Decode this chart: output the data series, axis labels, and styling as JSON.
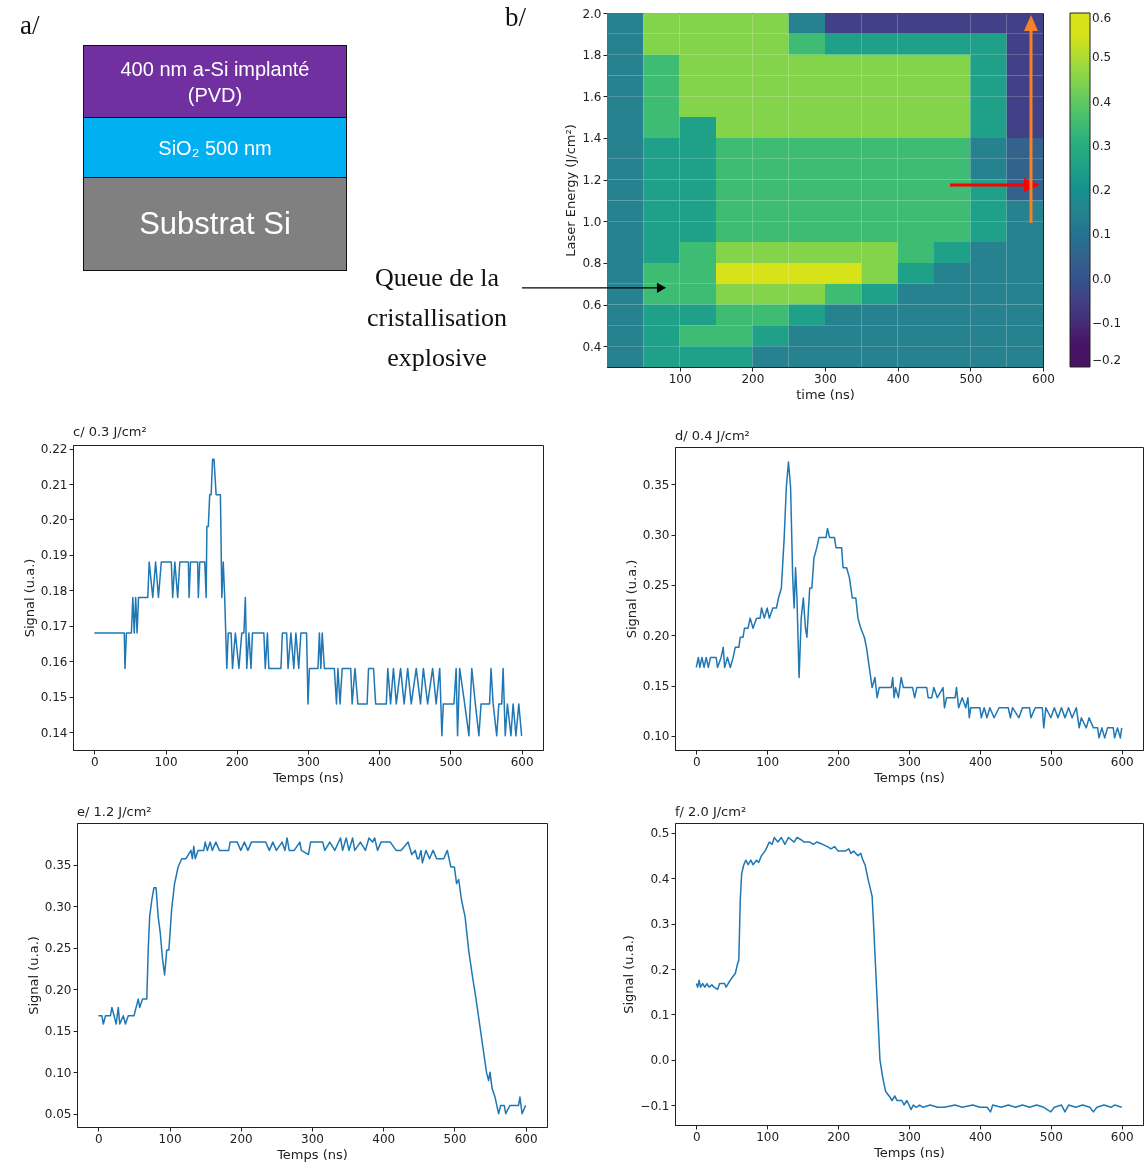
{
  "chart_data": [
    {
      "type": "other",
      "title": "a/",
      "categories": [
        "400 nm a-Si implanté (PVD)",
        "SiO₂ 500 nm",
        "Substrat Si"
      ],
      "colors": [
        "#7030a0",
        "#00b0f0",
        "#808080"
      ]
    },
    {
      "type": "heatmap",
      "title": "b/",
      "xlabel": "time (ns)",
      "ylabel": "Laser Energy (J/cm²)",
      "clim": [
        -0.2,
        0.6
      ],
      "cticks": [
        {
          "value": -0.2,
          "label": "−0.2"
        },
        {
          "value": -0.1,
          "label": "−0.1"
        },
        {
          "value": 0,
          "label": "0.0"
        },
        0.1,
        0.2,
        0.3,
        0.4,
        0.5,
        0.6
      ],
      "colors": [
        "#471365",
        "#424086",
        "#33638d",
        "#26828e",
        "#1fa088",
        "#3fbc73",
        "#84d44b",
        "#d8e219"
      ],
      "xlim": [
        0,
        600
      ],
      "xticks": [
        100,
        200,
        300,
        400,
        500,
        600
      ],
      "ylim": [
        0.3,
        2.0
      ],
      "yticks": [
        0.4,
        0.6,
        0.8,
        {
          "value": 1,
          "label": "1.0"
        },
        1.2,
        1.4,
        1.6,
        1.8,
        {
          "value": 2,
          "label": "2.0"
        }
      ],
      "x": [
        25,
        75,
        125,
        175,
        225,
        275,
        325,
        375,
        425,
        475,
        525,
        575
      ],
      "y": [
        1.95,
        1.85,
        1.75,
        1.65,
        1.55,
        1.45,
        1.35,
        1.25,
        1.15,
        1.05,
        0.95,
        0.85,
        0.75,
        0.65,
        0.55,
        0.45,
        0.35
      ],
      "cells": [
        [
          0.15,
          0.45,
          0.45,
          0.45,
          0.45,
          0.15,
          -0.05,
          -0.05,
          -0.05,
          -0.05,
          -0.05,
          -0.05
        ],
        [
          0.15,
          0.45,
          0.45,
          0.45,
          0.45,
          0.35,
          0.25,
          0.25,
          0.25,
          0.25,
          0.25,
          -0.05
        ],
        [
          0.15,
          0.35,
          0.45,
          0.45,
          0.45,
          0.45,
          0.45,
          0.45,
          0.45,
          0.45,
          0.25,
          -0.05
        ],
        [
          0.15,
          0.35,
          0.45,
          0.45,
          0.45,
          0.45,
          0.45,
          0.45,
          0.45,
          0.45,
          0.25,
          -0.05
        ],
        [
          0.15,
          0.35,
          0.45,
          0.45,
          0.45,
          0.45,
          0.45,
          0.45,
          0.45,
          0.45,
          0.25,
          -0.05
        ],
        [
          0.15,
          0.35,
          0.25,
          0.45,
          0.45,
          0.45,
          0.45,
          0.45,
          0.45,
          0.45,
          0.25,
          -0.05
        ],
        [
          0.15,
          0.25,
          0.25,
          0.35,
          0.35,
          0.35,
          0.35,
          0.35,
          0.35,
          0.35,
          0.15,
          0.05
        ],
        [
          0.15,
          0.25,
          0.25,
          0.35,
          0.35,
          0.35,
          0.35,
          0.35,
          0.35,
          0.35,
          0.15,
          0.05
        ],
        [
          0.15,
          0.25,
          0.25,
          0.35,
          0.35,
          0.35,
          0.35,
          0.35,
          0.35,
          0.35,
          0.25,
          0.05
        ],
        [
          0.15,
          0.25,
          0.25,
          0.35,
          0.35,
          0.35,
          0.35,
          0.35,
          0.35,
          0.35,
          0.25,
          0.15
        ],
        [
          0.15,
          0.25,
          0.25,
          0.35,
          0.35,
          0.35,
          0.35,
          0.35,
          0.35,
          0.35,
          0.25,
          0.15
        ],
        [
          0.15,
          0.25,
          0.35,
          0.45,
          0.45,
          0.45,
          0.45,
          0.45,
          0.35,
          0.25,
          0.15,
          0.15
        ],
        [
          0.15,
          0.35,
          0.35,
          0.55,
          0.55,
          0.55,
          0.55,
          0.45,
          0.25,
          0.15,
          0.15,
          0.15
        ],
        [
          0.15,
          0.35,
          0.35,
          0.45,
          0.45,
          0.45,
          0.35,
          0.25,
          0.15,
          0.15,
          0.15,
          0.15
        ],
        [
          0.15,
          0.25,
          0.25,
          0.35,
          0.35,
          0.25,
          0.15,
          0.15,
          0.15,
          0.15,
          0.15,
          0.15
        ],
        [
          0.15,
          0.25,
          0.35,
          0.35,
          0.25,
          0.15,
          0.15,
          0.15,
          0.15,
          0.15,
          0.15,
          0.15
        ],
        [
          0.15,
          0.25,
          0.25,
          0.25,
          0.15,
          0.15,
          0.15,
          0.15,
          0.15,
          0.15,
          0.15,
          0.15
        ]
      ],
      "annotations": [
        {
          "text": "Queue de la cristallisation explosive",
          "x": 75,
          "y": 0.68
        }
      ]
    },
    {
      "type": "line",
      "title": "c/ 0.3 J/cm²",
      "xlabel": "Temps (ns)",
      "ylabel": "Signal (u.a.)",
      "color": "#1f77b4",
      "xlim": [
        -30,
        630
      ],
      "xticks": [
        0,
        100,
        200,
        300,
        400,
        500,
        600
      ],
      "ylim": [
        0.135,
        0.221
      ],
      "yticks": [
        0.14,
        0.15,
        0.16,
        0.17,
        0.18,
        0.19,
        {
          "value": 0.2,
          "label": "0.20"
        },
        0.21,
        0.22
      ],
      "x": [
        0,
        42,
        43,
        45,
        52,
        54,
        56,
        58,
        60,
        62,
        75,
        77,
        82,
        86,
        90,
        94,
        108,
        110,
        113,
        117,
        120,
        132,
        133,
        135,
        145,
        146,
        148,
        155,
        157,
        158,
        160,
        162,
        164,
        166,
        168,
        171,
        177,
        179,
        181,
        183,
        186,
        188,
        192,
        194,
        198,
        203,
        207,
        210,
        212,
        214,
        217,
        220,
        222,
        238,
        240,
        243,
        245,
        262,
        264,
        270,
        272,
        276,
        280,
        283,
        287,
        290,
        298,
        300,
        302,
        314,
        316,
        318,
        320,
        323,
        337,
        340,
        342,
        345,
        348,
        360,
        362,
        366,
        370,
        383,
        385,
        392,
        395,
        410,
        412,
        416,
        420,
        424,
        430,
        435,
        440,
        445,
        452,
        458,
        462,
        468,
        475,
        480,
        485,
        488,
        490,
        505,
        508,
        510,
        513,
        520,
        526,
        530,
        535,
        540,
        543,
        555,
        557,
        560,
        565,
        568,
        572,
        574,
        577,
        580,
        585,
        588,
        592,
        596,
        600
      ],
      "values": [
        0.168,
        0.168,
        0.158,
        0.168,
        0.168,
        0.178,
        0.168,
        0.178,
        0.168,
        0.178,
        0.178,
        0.188,
        0.178,
        0.188,
        0.178,
        0.188,
        0.188,
        0.178,
        0.188,
        0.178,
        0.188,
        0.188,
        0.178,
        0.188,
        0.188,
        0.178,
        0.188,
        0.188,
        0.178,
        0.198,
        0.198,
        0.207,
        0.207,
        0.217,
        0.217,
        0.207,
        0.207,
        0.178,
        0.188,
        0.178,
        0.158,
        0.168,
        0.168,
        0.158,
        0.168,
        0.158,
        0.168,
        0.168,
        0.178,
        0.158,
        0.168,
        0.158,
        0.168,
        0.168,
        0.158,
        0.168,
        0.158,
        0.158,
        0.168,
        0.168,
        0.158,
        0.168,
        0.158,
        0.168,
        0.158,
        0.168,
        0.168,
        0.148,
        0.158,
        0.158,
        0.168,
        0.158,
        0.168,
        0.158,
        0.158,
        0.148,
        0.158,
        0.148,
        0.158,
        0.158,
        0.148,
        0.158,
        0.148,
        0.148,
        0.158,
        0.158,
        0.148,
        0.148,
        0.158,
        0.148,
        0.158,
        0.148,
        0.158,
        0.148,
        0.158,
        0.148,
        0.158,
        0.148,
        0.158,
        0.148,
        0.158,
        0.148,
        0.158,
        0.139,
        0.148,
        0.148,
        0.158,
        0.139,
        0.158,
        0.148,
        0.139,
        0.158,
        0.148,
        0.139,
        0.148,
        0.148,
        0.158,
        0.148,
        0.139,
        0.148,
        0.148,
        0.158,
        0.139,
        0.148,
        0.139,
        0.148,
        0.139,
        0.148,
        0.139
      ]
    },
    {
      "type": "line",
      "title": "d/ 0.4 J/cm²",
      "xlabel": "Temps (ns)",
      "ylabel": "Signal (u.a.)",
      "color": "#1f77b4",
      "xlim": [
        -30,
        630
      ],
      "xticks": [
        0,
        100,
        200,
        300,
        400,
        500,
        600
      ],
      "ylim": [
        0.086,
        0.387
      ],
      "yticks": [
        {
          "value": 0.1,
          "label": "0.10"
        },
        0.15,
        {
          "value": 0.2,
          "label": "0.20"
        },
        0.25,
        {
          "value": 0.3,
          "label": "0.30"
        },
        0.35
      ],
      "x": [
        0,
        3,
        5,
        8,
        11,
        14,
        17,
        20,
        28,
        30,
        35,
        38,
        40,
        44,
        48,
        52,
        55,
        60,
        62,
        66,
        68,
        73,
        76,
        80,
        85,
        90,
        92,
        96,
        100,
        103,
        108,
        113,
        116,
        120,
        124,
        127,
        130,
        133,
        136,
        138,
        140,
        142,
        145,
        148,
        151,
        154,
        156,
        160,
        163,
        166,
        170,
        173,
        183,
        185,
        188,
        195,
        197,
        205,
        207,
        212,
        216,
        220,
        225,
        228,
        232,
        237,
        240,
        244,
        248,
        252,
        255,
        258,
        275,
        277,
        279,
        281,
        285,
        289,
        292,
        305,
        308,
        311,
        325,
        327,
        332,
        335,
        340,
        348,
        350,
        353,
        365,
        367,
        370,
        375,
        380,
        383,
        385,
        387,
        400,
        402,
        406,
        410,
        414,
        420,
        427,
        440,
        443,
        446,
        455,
        460,
        470,
        472,
        478,
        488,
        490,
        493,
        500,
        505,
        510,
        515,
        520,
        525,
        530,
        536,
        540,
        543,
        550,
        554,
        560,
        566,
        568,
        572,
        576,
        580,
        588,
        590,
        594,
        598,
        600
      ],
      "values": [
        0.168,
        0.178,
        0.168,
        0.178,
        0.168,
        0.178,
        0.168,
        0.178,
        0.178,
        0.168,
        0.178,
        0.188,
        0.168,
        0.178,
        0.168,
        0.178,
        0.188,
        0.188,
        0.198,
        0.198,
        0.207,
        0.207,
        0.217,
        0.207,
        0.217,
        0.217,
        0.227,
        0.217,
        0.227,
        0.217,
        0.227,
        0.227,
        0.237,
        0.247,
        0.297,
        0.347,
        0.372,
        0.347,
        0.257,
        0.227,
        0.267,
        0.237,
        0.158,
        0.217,
        0.237,
        0.207,
        0.198,
        0.247,
        0.247,
        0.277,
        0.287,
        0.297,
        0.297,
        0.306,
        0.297,
        0.297,
        0.287,
        0.287,
        0.267,
        0.267,
        0.257,
        0.237,
        0.237,
        0.217,
        0.207,
        0.198,
        0.188,
        0.168,
        0.148,
        0.158,
        0.138,
        0.148,
        0.148,
        0.158,
        0.138,
        0.148,
        0.138,
        0.158,
        0.148,
        0.148,
        0.138,
        0.148,
        0.148,
        0.138,
        0.138,
        0.148,
        0.138,
        0.148,
        0.128,
        0.138,
        0.138,
        0.148,
        0.128,
        0.138,
        0.128,
        0.138,
        0.118,
        0.128,
        0.128,
        0.118,
        0.128,
        0.118,
        0.128,
        0.118,
        0.128,
        0.128,
        0.118,
        0.128,
        0.118,
        0.128,
        0.128,
        0.118,
        0.128,
        0.128,
        0.108,
        0.128,
        0.118,
        0.128,
        0.118,
        0.128,
        0.118,
        0.128,
        0.118,
        0.128,
        0.108,
        0.118,
        0.108,
        0.118,
        0.108,
        0.108,
        0.098,
        0.108,
        0.098,
        0.108,
        0.108,
        0.098,
        0.108,
        0.098,
        0.108
      ]
    },
    {
      "type": "line",
      "title": "e/ 1.2 J/cm²",
      "xlabel": "Temps (ns)",
      "ylabel": "Signal (u.a.)",
      "color": "#1f77b4",
      "xlim": [
        -30,
        630
      ],
      "xticks": [
        0,
        100,
        200,
        300,
        400,
        500,
        600
      ],
      "ylim": [
        0.034,
        0.4
      ],
      "yticks": [
        0.05,
        {
          "value": 0.1,
          "label": "0.10"
        },
        0.15,
        {
          "value": 0.2,
          "label": "0.20"
        },
        0.25,
        {
          "value": 0.3,
          "label": "0.30"
        },
        0.35
      ],
      "x": [
        0,
        5,
        7,
        10,
        17,
        19,
        22,
        25,
        28,
        30,
        35,
        38,
        42,
        50,
        53,
        56,
        58,
        62,
        68,
        70,
        72,
        75,
        78,
        81,
        84,
        87,
        90,
        93,
        96,
        99,
        103,
        107,
        112,
        117,
        123,
        130,
        132,
        134,
        136,
        140,
        148,
        150,
        153,
        157,
        160,
        165,
        170,
        183,
        185,
        195,
        200,
        205,
        210,
        215,
        235,
        240,
        245,
        250,
        258,
        262,
        265,
        268,
        275,
        283,
        285,
        295,
        298,
        315,
        318,
        325,
        332,
        340,
        343,
        348,
        352,
        357,
        360,
        368,
        375,
        380,
        385,
        388,
        392,
        397,
        405,
        410,
        418,
        425,
        435,
        440,
        445,
        448,
        450,
        453,
        455,
        460,
        465,
        470,
        475,
        485,
        490,
        495,
        500,
        503,
        506,
        510,
        515,
        520,
        525,
        530,
        535,
        540,
        545,
        548,
        550,
        553,
        557,
        562,
        565,
        570,
        572,
        578,
        590,
        592,
        595,
        600
      ],
      "values": [
        0.168,
        0.168,
        0.158,
        0.168,
        0.168,
        0.178,
        0.168,
        0.158,
        0.178,
        0.158,
        0.168,
        0.158,
        0.168,
        0.168,
        0.178,
        0.188,
        0.178,
        0.188,
        0.188,
        0.247,
        0.287,
        0.307,
        0.322,
        0.322,
        0.287,
        0.267,
        0.237,
        0.217,
        0.247,
        0.247,
        0.297,
        0.327,
        0.347,
        0.357,
        0.357,
        0.367,
        0.357,
        0.372,
        0.357,
        0.367,
        0.367,
        0.377,
        0.367,
        0.377,
        0.367,
        0.377,
        0.367,
        0.367,
        0.377,
        0.377,
        0.367,
        0.377,
        0.367,
        0.377,
        0.377,
        0.367,
        0.377,
        0.367,
        0.377,
        0.367,
        0.382,
        0.367,
        0.367,
        0.377,
        0.367,
        0.362,
        0.377,
        0.377,
        0.367,
        0.377,
        0.367,
        0.382,
        0.367,
        0.382,
        0.367,
        0.382,
        0.367,
        0.377,
        0.367,
        0.382,
        0.377,
        0.382,
        0.367,
        0.377,
        0.377,
        0.377,
        0.367,
        0.367,
        0.377,
        0.362,
        0.367,
        0.357,
        0.357,
        0.367,
        0.352,
        0.367,
        0.357,
        0.367,
        0.357,
        0.357,
        0.367,
        0.347,
        0.347,
        0.327,
        0.332,
        0.307,
        0.287,
        0.247,
        0.217,
        0.19,
        0.16,
        0.13,
        0.1,
        0.09,
        0.1,
        0.08,
        0.07,
        0.05,
        0.06,
        0.06,
        0.05,
        0.06,
        0.06,
        0.07,
        0.05,
        0.06
      ]
    },
    {
      "type": "line",
      "title": "f/ 2.0 J/cm²",
      "xlabel": "Temps (ns)",
      "ylabel": "Signal (u.a.)",
      "color": "#1f77b4",
      "xlim": [
        -30,
        630
      ],
      "xticks": [
        0,
        100,
        200,
        300,
        400,
        500,
        600
      ],
      "ylim": [
        -0.144,
        0.522
      ],
      "yticks": [
        {
          "value": -0.1,
          "label": "−0.1"
        },
        {
          "value": 0,
          "label": "0.0"
        },
        0.1,
        0.2,
        0.3,
        0.4,
        0.5
      ],
      "x": [
        0,
        2,
        4,
        6,
        9,
        12,
        15,
        18,
        22,
        25,
        30,
        33,
        40,
        42,
        45,
        50,
        55,
        58,
        60,
        62,
        64,
        67,
        70,
        73,
        77,
        80,
        85,
        88,
        92,
        97,
        100,
        103,
        107,
        110,
        115,
        120,
        125,
        130,
        138,
        142,
        148,
        152,
        160,
        165,
        170,
        178,
        185,
        190,
        195,
        200,
        210,
        215,
        218,
        222,
        228,
        232,
        235,
        238,
        242,
        245,
        248,
        250,
        253,
        256,
        259,
        263,
        267,
        272,
        276,
        280,
        283,
        290,
        293,
        297,
        300,
        303,
        306,
        310,
        315,
        320,
        330,
        340,
        350,
        365,
        375,
        390,
        400,
        410,
        415,
        418,
        430,
        440,
        450,
        460,
        470,
        480,
        490,
        500,
        505,
        515,
        520,
        525,
        535,
        545,
        555,
        560,
        565,
        575,
        585,
        590,
        600
      ],
      "values": [
        0.168,
        0.16,
        0.175,
        0.16,
        0.168,
        0.16,
        0.168,
        0.16,
        0.165,
        0.16,
        0.155,
        0.168,
        0.168,
        0.16,
        0.168,
        0.18,
        0.19,
        0.21,
        0.22,
        0.35,
        0.41,
        0.43,
        0.44,
        0.43,
        0.44,
        0.43,
        0.44,
        0.435,
        0.45,
        0.46,
        0.47,
        0.48,
        0.475,
        0.49,
        0.48,
        0.49,
        0.475,
        0.49,
        0.48,
        0.49,
        0.485,
        0.48,
        0.48,
        0.475,
        0.48,
        0.475,
        0.47,
        0.465,
        0.47,
        0.46,
        0.46,
        0.465,
        0.455,
        0.46,
        0.45,
        0.455,
        0.44,
        0.43,
        0.4,
        0.38,
        0.36,
        0.3,
        0.2,
        0.1,
        0.0,
        -0.04,
        -0.07,
        -0.08,
        -0.09,
        -0.08,
        -0.09,
        -0.09,
        -0.1,
        -0.09,
        -0.1,
        -0.11,
        -0.1,
        -0.105,
        -0.1,
        -0.105,
        -0.1,
        -0.105,
        -0.105,
        -0.1,
        -0.105,
        -0.1,
        -0.105,
        -0.105,
        -0.115,
        -0.1,
        -0.105,
        -0.1,
        -0.105,
        -0.1,
        -0.105,
        -0.1,
        -0.105,
        -0.115,
        -0.105,
        -0.1,
        -0.115,
        -0.1,
        -0.105,
        -0.1,
        -0.105,
        -0.115,
        -0.105,
        -0.1,
        -0.105,
        -0.1,
        -0.105
      ]
    }
  ]
}
